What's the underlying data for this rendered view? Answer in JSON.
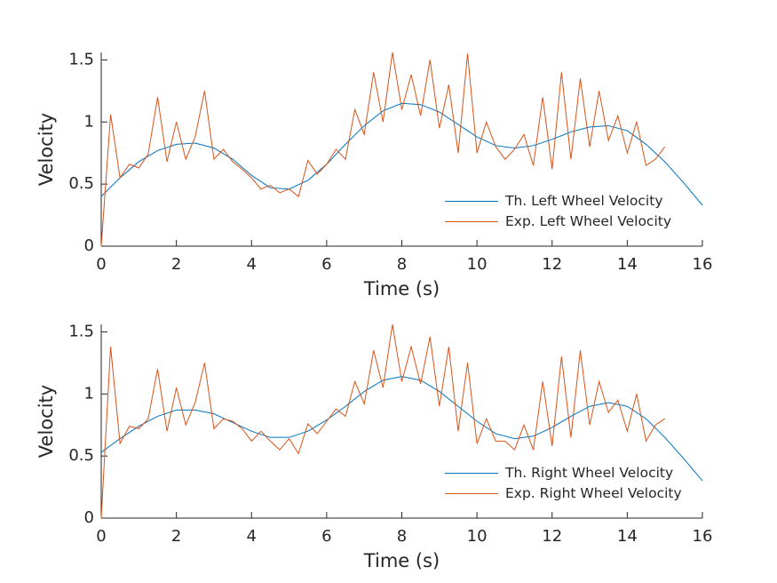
{
  "chart_data": [
    {
      "type": "line",
      "xlabel": "Time (s)",
      "ylabel": "Velocity",
      "xlim": [
        0,
        16
      ],
      "ylim": [
        0,
        1.56
      ],
      "xticks": [
        0,
        2,
        4,
        6,
        8,
        10,
        12,
        14,
        16
      ],
      "yticks": [
        0,
        0.5,
        1,
        1.5
      ],
      "legend": "lower right",
      "series": [
        {
          "name": "Th. Left Wheel Velocity",
          "color": "#0072BD",
          "x": [
            0,
            0.5,
            1,
            1.5,
            2,
            2.5,
            3,
            3.5,
            4,
            4.5,
            5,
            5.5,
            6,
            6.5,
            7,
            7.5,
            8,
            8.5,
            9,
            9.5,
            10,
            10.5,
            11,
            11.5,
            12,
            12.5,
            13,
            13.5,
            14,
            14.5,
            15,
            15.5,
            16
          ],
          "values": [
            0.4,
            0.55,
            0.68,
            0.77,
            0.82,
            0.83,
            0.79,
            0.7,
            0.57,
            0.47,
            0.46,
            0.53,
            0.66,
            0.82,
            0.97,
            1.09,
            1.15,
            1.14,
            1.08,
            0.98,
            0.88,
            0.81,
            0.79,
            0.81,
            0.86,
            0.92,
            0.96,
            0.97,
            0.93,
            0.82,
            0.68,
            0.51,
            0.33
          ]
        },
        {
          "name": "Exp. Left Wheel Velocity",
          "color": "#D95319",
          "x": [
            0,
            0.25,
            0.5,
            0.75,
            1,
            1.25,
            1.5,
            1.75,
            2,
            2.25,
            2.5,
            2.75,
            3,
            3.25,
            3.5,
            3.75,
            4,
            4.25,
            4.5,
            4.75,
            5,
            5.25,
            5.5,
            5.75,
            6,
            6.25,
            6.5,
            6.75,
            7,
            7.25,
            7.5,
            7.75,
            8,
            8.25,
            8.5,
            8.75,
            9,
            9.25,
            9.5,
            9.75,
            10,
            10.25,
            10.5,
            10.75,
            11,
            11.25,
            11.5,
            11.75,
            12,
            12.25,
            12.5,
            12.75,
            13,
            13.25,
            13.5,
            13.75,
            14,
            14.25,
            14.5,
            14.75,
            15
          ],
          "values": [
            0.0,
            1.06,
            0.55,
            0.66,
            0.63,
            0.74,
            1.2,
            0.68,
            1.0,
            0.7,
            0.88,
            1.25,
            0.7,
            0.78,
            0.68,
            0.62,
            0.55,
            0.46,
            0.49,
            0.43,
            0.46,
            0.4,
            0.69,
            0.58,
            0.66,
            0.78,
            0.7,
            1.1,
            0.9,
            1.4,
            1.0,
            1.56,
            1.1,
            1.38,
            1.05,
            1.5,
            0.95,
            1.3,
            0.75,
            1.55,
            0.75,
            1.0,
            0.8,
            0.7,
            0.78,
            0.9,
            0.65,
            1.2,
            0.62,
            1.4,
            0.7,
            1.35,
            0.8,
            1.25,
            0.85,
            1.05,
            0.75,
            1.0,
            0.65,
            0.7,
            0.8
          ]
        }
      ]
    },
    {
      "type": "line",
      "xlabel": "Time (s)",
      "ylabel": "Velocity",
      "xlim": [
        0,
        16
      ],
      "ylim": [
        0,
        1.56
      ],
      "xticks": [
        0,
        2,
        4,
        6,
        8,
        10,
        12,
        14,
        16
      ],
      "yticks": [
        0,
        0.5,
        1,
        1.5
      ],
      "legend": "lower right",
      "series": [
        {
          "name": "Th. Right Wheel Velocity",
          "color": "#0072BD",
          "x": [
            0,
            0.5,
            1,
            1.5,
            2,
            2.5,
            3,
            3.5,
            4,
            4.5,
            5,
            5.5,
            6,
            6.5,
            7,
            7.5,
            8,
            8.5,
            9,
            9.5,
            10,
            10.5,
            11,
            11.5,
            12,
            12.5,
            13,
            13.5,
            14,
            14.5,
            15,
            15.5,
            16
          ],
          "values": [
            0.53,
            0.64,
            0.74,
            0.82,
            0.87,
            0.87,
            0.84,
            0.77,
            0.7,
            0.65,
            0.65,
            0.7,
            0.79,
            0.9,
            1.02,
            1.11,
            1.14,
            1.11,
            1.02,
            0.9,
            0.78,
            0.68,
            0.64,
            0.66,
            0.73,
            0.82,
            0.9,
            0.93,
            0.9,
            0.8,
            0.65,
            0.48,
            0.3
          ]
        },
        {
          "name": "Exp. Right Wheel Velocity",
          "color": "#D95319",
          "x": [
            0,
            0.25,
            0.5,
            0.75,
            1,
            1.25,
            1.5,
            1.75,
            2,
            2.25,
            2.5,
            2.75,
            3,
            3.25,
            3.5,
            3.75,
            4,
            4.25,
            4.5,
            4.75,
            5,
            5.25,
            5.5,
            5.75,
            6,
            6.25,
            6.5,
            6.75,
            7,
            7.25,
            7.5,
            7.75,
            8,
            8.25,
            8.5,
            8.75,
            9,
            9.25,
            9.5,
            9.75,
            10,
            10.25,
            10.5,
            10.75,
            11,
            11.25,
            11.5,
            11.75,
            12,
            12.25,
            12.5,
            12.75,
            13,
            13.25,
            13.5,
            13.75,
            14,
            14.25,
            14.5,
            14.75,
            15
          ],
          "values": [
            0.0,
            1.38,
            0.6,
            0.74,
            0.72,
            0.8,
            1.2,
            0.7,
            1.05,
            0.75,
            0.93,
            1.25,
            0.72,
            0.8,
            0.78,
            0.72,
            0.62,
            0.7,
            0.62,
            0.55,
            0.64,
            0.52,
            0.76,
            0.68,
            0.78,
            0.88,
            0.82,
            1.1,
            0.92,
            1.35,
            1.05,
            1.56,
            1.1,
            1.38,
            1.08,
            1.46,
            0.9,
            1.38,
            0.7,
            1.25,
            0.6,
            0.8,
            0.62,
            0.62,
            0.55,
            0.75,
            0.55,
            1.1,
            0.58,
            1.3,
            0.65,
            1.35,
            0.75,
            1.1,
            0.85,
            0.95,
            0.7,
            1.0,
            0.62,
            0.75,
            0.8
          ]
        }
      ]
    }
  ]
}
